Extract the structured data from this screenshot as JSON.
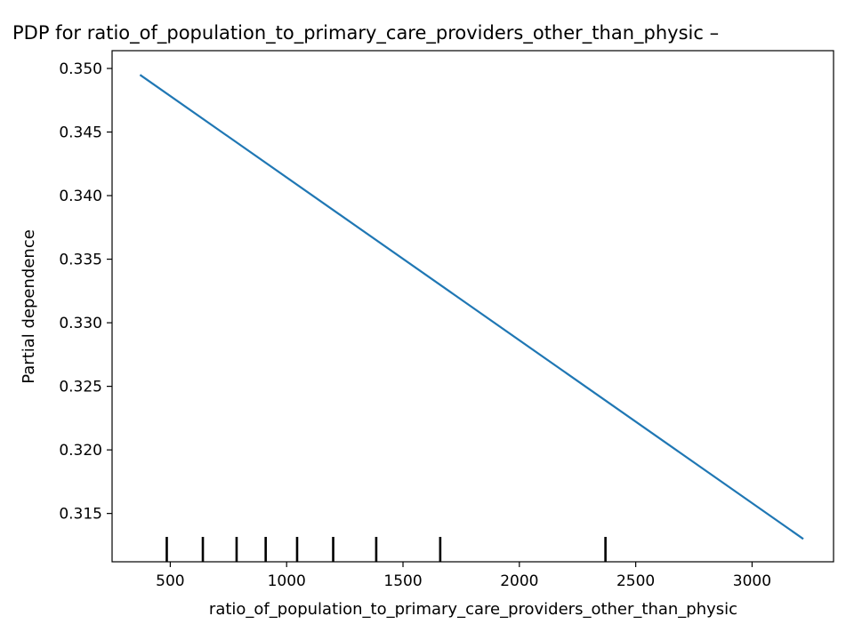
{
  "chart_data": {
    "type": "line",
    "title": "PDP for ratio_of_population_to_primary_care_providers_other_than_physic –",
    "xlabel": "ratio_of_population_to_primary_care_providers_other_than_physic",
    "ylabel": "Partial dependence",
    "xlim": [
      250,
      3350
    ],
    "ylim": [
      0.3112,
      0.3514
    ],
    "xticks": [
      500,
      1000,
      1500,
      2000,
      2500,
      3000
    ],
    "xtick_labels": [
      "500",
      "1000",
      "1500",
      "2000",
      "2500",
      "3000"
    ],
    "yticks": [
      0.315,
      0.32,
      0.325,
      0.33,
      0.335,
      0.34,
      0.345,
      0.35
    ],
    "ytick_labels": [
      "0.315",
      "0.320",
      "0.325",
      "0.330",
      "0.335",
      "0.340",
      "0.345",
      "0.350"
    ],
    "grid": false,
    "series": [
      {
        "color": "#1f77b4",
        "x": [
          370,
          3220
        ],
        "y": [
          0.3495,
          0.313
        ]
      }
    ],
    "rug": {
      "color": "#000000",
      "x": [
        485,
        640,
        785,
        910,
        1045,
        1200,
        1385,
        1660,
        2370
      ]
    }
  }
}
